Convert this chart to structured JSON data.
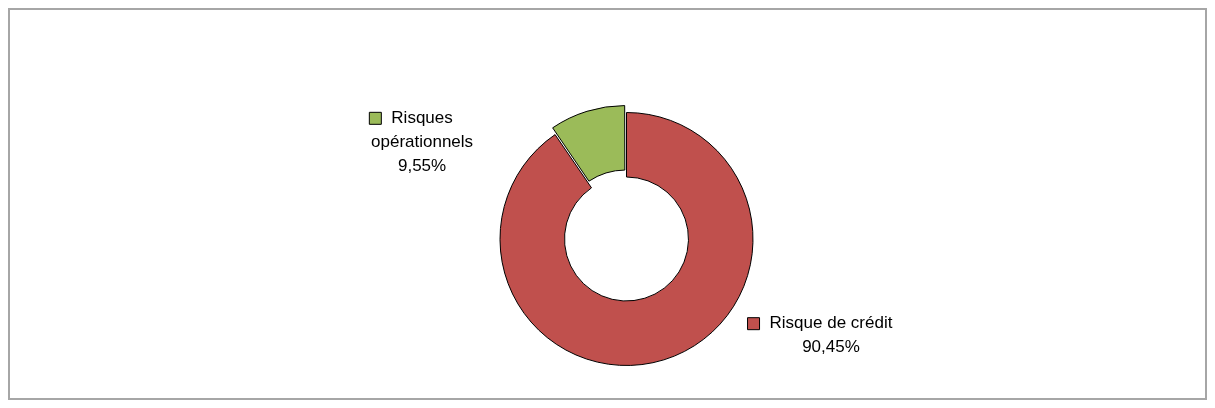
{
  "chart_data": {
    "type": "donut",
    "categories": [
      "Risque de crédit",
      "Risques opérationnels"
    ],
    "values": [
      90.45,
      9.55
    ],
    "colors": [
      "#c0504d",
      "#9bbb59"
    ],
    "value_labels": [
      "90,45%",
      "9,55%"
    ],
    "legend": "right"
  }
}
